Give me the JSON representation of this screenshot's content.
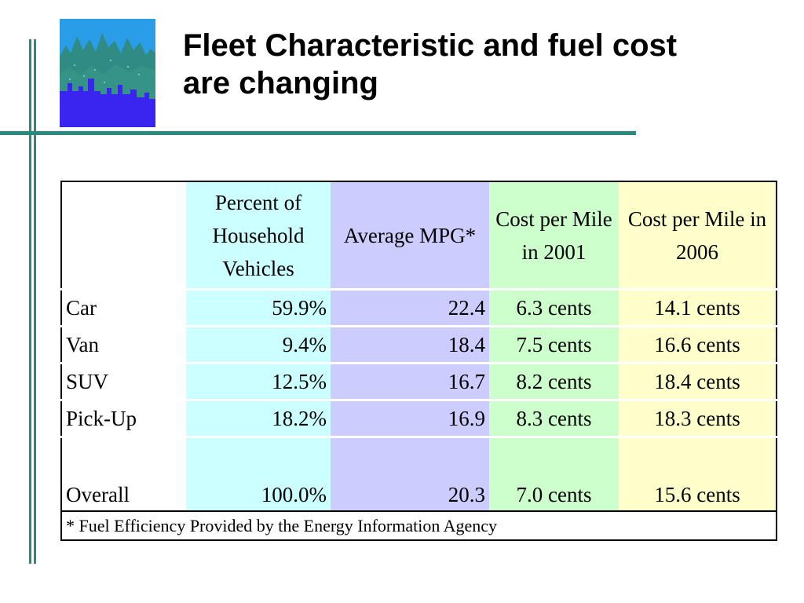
{
  "slide": {
    "title_line1": "Fleet Characteristic and fuel cost",
    "title_line2": "are changing",
    "accent_color": "#2a8a7f"
  },
  "logo": {
    "icon": "city-skyline-logo-icon"
  },
  "table": {
    "headers": [
      "",
      "Percent of Household Vehicles",
      "Average MPG*",
      "Cost per Mile in 2001",
      "Cost per Mile in 2006"
    ],
    "column_colors": [
      "#ffffff",
      "#ccffff",
      "#ccccff",
      "#ccffcc",
      "#ffffcc"
    ],
    "rows": [
      [
        "Car",
        "59.9%",
        "22.4",
        "6.3 cents",
        "14.1 cents"
      ],
      [
        "Van",
        "9.4%",
        "18.4",
        "7.5 cents",
        "16.6 cents"
      ],
      [
        "SUV",
        "12.5%",
        "16.7",
        "8.2 cents",
        "18.4 cents"
      ],
      [
        "Pick-Up",
        "18.2%",
        "16.9",
        "8.3 cents",
        "18.3 cents"
      ]
    ],
    "overall": [
      "Overall",
      "100.0%",
      "20.3",
      "7.0 cents",
      "15.6 cents"
    ],
    "footnote": "* Fuel Efficiency Provided by the Energy Information Agency"
  }
}
